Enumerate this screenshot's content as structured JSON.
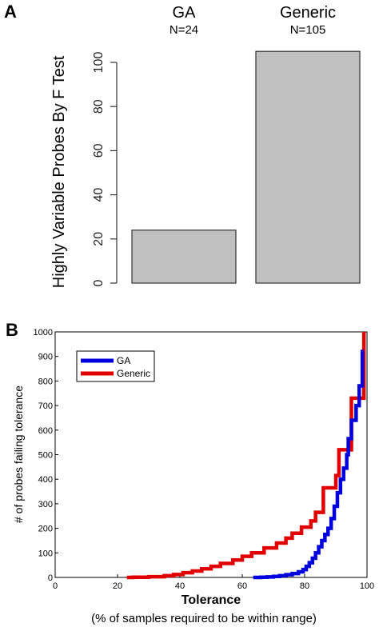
{
  "chart_data": [
    {
      "panel": "A",
      "type": "bar",
      "categories": [
        "GA",
        "Generic"
      ],
      "values": [
        24,
        105
      ],
      "n_labels": [
        "N=24",
        "N=105"
      ],
      "ylabel": "Highly Variable Probes By F Test",
      "xlabel": "",
      "ylim": [
        0,
        105
      ],
      "yticks": [
        0,
        20,
        40,
        60,
        80,
        100
      ],
      "colors": {
        "bar_fill": "#c0c0c0",
        "bar_stroke": "#333333"
      }
    },
    {
      "panel": "B",
      "type": "line",
      "xlabel": "Tolerance",
      "xsublabel": "(% of samples required to be within range)",
      "ylabel": "# of probes failing tolerance",
      "xlim": [
        0,
        100
      ],
      "ylim": [
        0,
        1000
      ],
      "xticks": [
        0,
        20,
        40,
        60,
        80,
        100
      ],
      "yticks": [
        0,
        100,
        200,
        300,
        400,
        500,
        600,
        700,
        800,
        900,
        1000
      ],
      "legend_position": "top-left",
      "series": [
        {
          "name": "GA",
          "color": "#0000dd",
          "points": [
            [
              63.5,
              0
            ],
            [
              66,
              1
            ],
            [
              68,
              2
            ],
            [
              70,
              4
            ],
            [
              72,
              7
            ],
            [
              74,
              11
            ],
            [
              76,
              16
            ],
            [
              78,
              23
            ],
            [
              79.5,
              32
            ],
            [
              80.5,
              45
            ],
            [
              81.5,
              60
            ],
            [
              82.5,
              78
            ],
            [
              83.5,
              100
            ],
            [
              84.5,
              125
            ],
            [
              85.5,
              150
            ],
            [
              86.5,
              175
            ],
            [
              87.5,
              200
            ],
            [
              88.5,
              240
            ],
            [
              89.5,
              290
            ],
            [
              90.5,
              345
            ],
            [
              91.5,
              400
            ],
            [
              92.5,
              445
            ],
            [
              93.5,
              500
            ],
            [
              94,
              565
            ],
            [
              95,
              640
            ],
            [
              96.5,
              700
            ],
            [
              97.5,
              780
            ],
            [
              98.5,
              920
            ],
            [
              99,
              920
            ]
          ]
        },
        {
          "name": "Generic",
          "color": "#e00000",
          "points": [
            [
              23,
              0
            ],
            [
              25,
              1
            ],
            [
              30,
              3
            ],
            [
              35,
              7
            ],
            [
              38,
              12
            ],
            [
              41,
              19
            ],
            [
              44,
              26
            ],
            [
              47,
              35
            ],
            [
              50,
              45
            ],
            [
              53,
              57
            ],
            [
              57,
              71
            ],
            [
              60,
              86
            ],
            [
              63,
              100
            ],
            [
              67,
              120
            ],
            [
              71,
              140
            ],
            [
              74,
              160
            ],
            [
              76,
              180
            ],
            [
              79,
              205
            ],
            [
              82,
              230
            ],
            [
              83.5,
              265
            ],
            [
              86,
              365
            ],
            [
              90,
              415
            ],
            [
              91,
              520
            ],
            [
              94,
              520
            ],
            [
              95,
              730
            ],
            [
              99,
              730
            ],
            [
              99,
              1000
            ]
          ]
        }
      ]
    }
  ]
}
